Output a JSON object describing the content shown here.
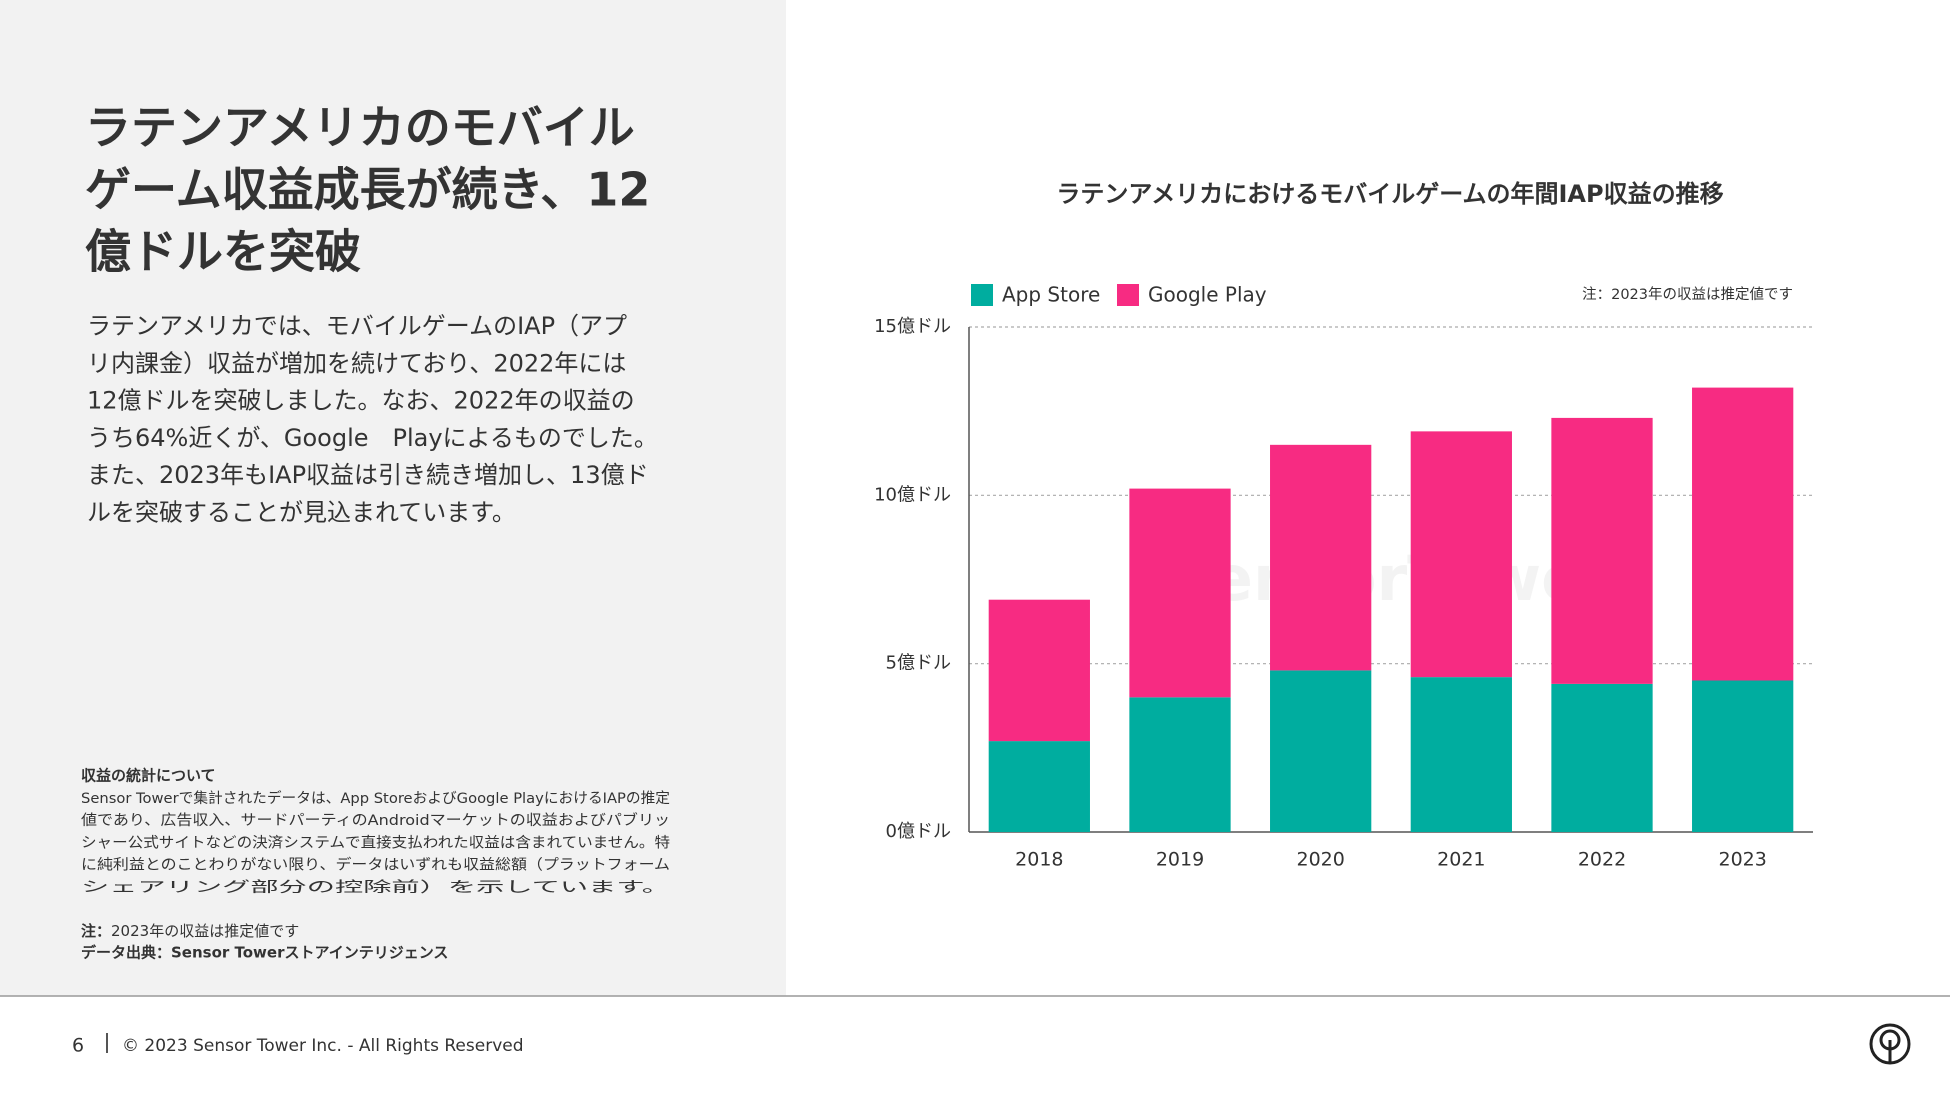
{
  "heading": [
    "ラテンアメリカのモバイル",
    "ゲーム収益成長が続き、12",
    "億ドルを突破"
  ],
  "body": [
    "ラテンアメリカでは、モバイルゲームのIAP（アプ",
    "リ内課金）収益が増加を続けており、2022年には",
    "12億ドルを突破しました。なお、2022年の収益の",
    "うち64%近くが、Google　Playによるものでした。",
    "また、2023年もIAP収益は引き続き増加し、13億ド",
    "ルを突破することが見込まれています。"
  ],
  "notes": {
    "title": "収益の統計について",
    "lines": [
      "Sensor Towerで集計されたデータは、App StoreおよびGoogle PlayにおけるIAPの推定",
      "値であり、広告収入、サードパーティのAndroidマーケットの収益およびパブリッ",
      "シャー公式サイトなどの決済システムで直接支払われた収益は含まれていません。特",
      "に純利益とのことわりがない限り、データはいずれも収益総額（プラットフォーム",
      "シェアリング部分の控除前）を示しています。"
    ],
    "estimate_label": "注：",
    "estimate_text": "2023年の収益は推定値です",
    "source": "データ出典：Sensor Towerストアインテリジェンス"
  },
  "footer": {
    "page": "6",
    "copyright": "© 2023 Sensor Tower Inc. - All Rights Reserved"
  },
  "chart_data": {
    "type": "stacked_bar",
    "title": "ラテンアメリカにおけるモバイルゲームの年間IAP収益の推移",
    "annotation": "注：2023年の収益は推定値です",
    "watermark": "SensorTower",
    "categories": [
      "2018",
      "2019",
      "2020",
      "2021",
      "2022",
      "2023"
    ],
    "series": [
      {
        "name": "App Store",
        "color": "#00ad9f",
        "values": [
          2.7,
          4.0,
          4.8,
          4.6,
          4.4,
          4.5
        ]
      },
      {
        "name": "Google Play",
        "color": "#f72b82",
        "values": [
          4.2,
          6.2,
          6.7,
          7.3,
          7.9,
          8.7
        ]
      }
    ],
    "ylim": [
      0,
      15
    ],
    "yticks": [
      {
        "value": 0,
        "label": "0億ドル"
      },
      {
        "value": 5,
        "label": "5億ドル"
      },
      {
        "value": 10,
        "label": "10億ドル"
      },
      {
        "value": 15,
        "label": "15億ドル"
      }
    ],
    "grid": true,
    "legend": "top-left"
  }
}
